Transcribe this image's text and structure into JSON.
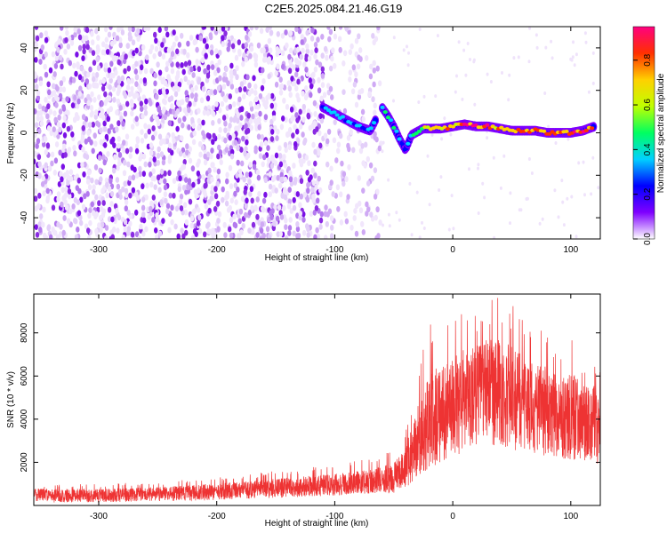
{
  "title": "C2E5.2025.084.21.46.G19",
  "colors": {
    "snr_line": "#ee3333",
    "spectrogram_low": "#8a2be2",
    "colormap": [
      "#ffffff",
      "#7f00ff",
      "#0000ff",
      "#00d0ff",
      "#00ff60",
      "#c0ff00",
      "#ffd000",
      "#ff3000",
      "#ff0080"
    ]
  },
  "chart_data": [
    {
      "type": "heatmap",
      "title": "C2E5.2025.084.21.46.G19",
      "xlabel": "Height of straight line (km)",
      "ylabel": "Frequency (Hz)",
      "xlim": [
        -355,
        125
      ],
      "ylim": [
        -50,
        50
      ],
      "xticks": [
        -300,
        -200,
        -100,
        0,
        100
      ],
      "yticks": [
        -40,
        -20,
        0,
        20,
        40
      ],
      "colorbar": {
        "label": "Normalized spectral amplitude",
        "range": [
          0,
          0.95
        ],
        "ticks": [
          0.0,
          0.2,
          0.4,
          0.6,
          0.8
        ]
      },
      "noise_region": {
        "x": [
          -355,
          -60
        ],
        "freq": [
          -50,
          50
        ],
        "amplitude": [
          0.02,
          0.12
        ]
      },
      "signal_track": [
        {
          "x": -110,
          "freq": 12,
          "amplitude": 0.3
        },
        {
          "x": -100,
          "freq": 9,
          "amplitude": 0.4
        },
        {
          "x": -90,
          "freq": 6,
          "amplitude": 0.35
        },
        {
          "x": -80,
          "freq": 3,
          "amplitude": 0.3
        },
        {
          "x": -70,
          "freq": 1,
          "amplitude": 0.35
        },
        {
          "x": -60,
          "freq": 12,
          "amplitude": 0.4
        },
        {
          "x": -55,
          "freq": 8,
          "amplitude": 0.45
        },
        {
          "x": -50,
          "freq": 3,
          "amplitude": 0.4
        },
        {
          "x": -45,
          "freq": -3,
          "amplitude": 0.35
        },
        {
          "x": -40,
          "freq": -8,
          "amplitude": 0.3
        },
        {
          "x": -35,
          "freq": -1,
          "amplitude": 0.4
        },
        {
          "x": -25,
          "freq": 2,
          "amplitude": 0.6
        },
        {
          "x": -10,
          "freq": 2,
          "amplitude": 0.7
        },
        {
          "x": 0,
          "freq": 3,
          "amplitude": 0.75
        },
        {
          "x": 10,
          "freq": 4,
          "amplitude": 0.85
        },
        {
          "x": 20,
          "freq": 3,
          "amplitude": 0.9
        },
        {
          "x": 30,
          "freq": 3,
          "amplitude": 0.85
        },
        {
          "x": 40,
          "freq": 2,
          "amplitude": 0.8
        },
        {
          "x": 50,
          "freq": 1,
          "amplitude": 0.85
        },
        {
          "x": 60,
          "freq": 1,
          "amplitude": 0.8
        },
        {
          "x": 70,
          "freq": 1,
          "amplitude": 0.9
        },
        {
          "x": 80,
          "freq": 0,
          "amplitude": 0.85
        },
        {
          "x": 90,
          "freq": 0,
          "amplitude": 0.8
        },
        {
          "x": 100,
          "freq": 0,
          "amplitude": 0.85
        },
        {
          "x": 110,
          "freq": 1,
          "amplitude": 0.9
        },
        {
          "x": 120,
          "freq": 3,
          "amplitude": 0.75
        }
      ]
    },
    {
      "type": "line",
      "xlabel": "Height of straight line (km)",
      "ylabel": "SNR (10 * v/v)",
      "xlim": [
        -355,
        125
      ],
      "ylim": [
        0,
        9800
      ],
      "xticks": [
        -300,
        -200,
        -100,
        0,
        100
      ],
      "yticks": [
        2000,
        4000,
        6000,
        8000
      ],
      "envelope": {
        "x": [
          -355,
          -300,
          -250,
          -200,
          -150,
          -100,
          -70,
          -50,
          -40,
          -30,
          -20,
          -10,
          0,
          10,
          20,
          30,
          40,
          50,
          60,
          70,
          80,
          90,
          100,
          110,
          125
        ],
        "mean": [
          500,
          500,
          550,
          650,
          800,
          950,
          1100,
          1200,
          1800,
          2800,
          3500,
          4000,
          4600,
          5200,
          5500,
          5500,
          5300,
          5000,
          4900,
          4600,
          4500,
          4300,
          4200,
          4100,
          4000
        ],
        "max": [
          1000,
          1000,
          1100,
          1300,
          1600,
          1900,
          2200,
          2600,
          3500,
          6200,
          8400,
          8500,
          8600,
          9200,
          9000,
          9600,
          9800,
          9400,
          8500,
          8300,
          8000,
          7300,
          8000,
          6800,
          6800
        ],
        "min": [
          100,
          100,
          150,
          200,
          300,
          400,
          500,
          500,
          700,
          1000,
          1500,
          1800,
          2000,
          2200,
          2500,
          2600,
          2400,
          2300,
          2200,
          2100,
          2000,
          2000,
          1800,
          1800,
          1600
        ]
      }
    }
  ]
}
